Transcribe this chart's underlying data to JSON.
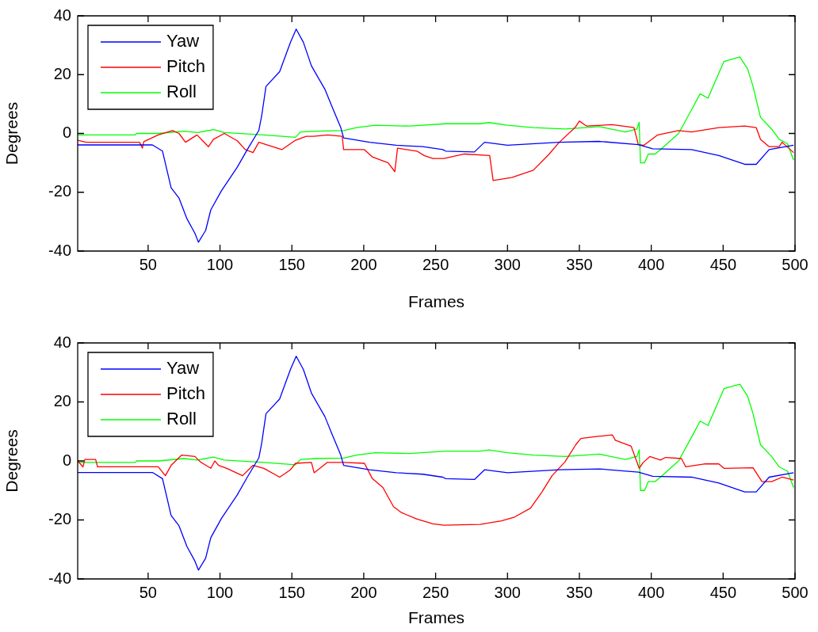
{
  "chart_data": [
    {
      "type": "line",
      "xlabel": "Frames",
      "ylabel": "Degrees",
      "xlim": [
        1,
        500
      ],
      "xticks": [
        50,
        100,
        150,
        200,
        250,
        300,
        350,
        400,
        450,
        500
      ],
      "ylim": [
        -40,
        40
      ],
      "yticks": [
        40,
        20,
        0,
        -20,
        -40
      ],
      "legend": "top left",
      "line_style": "solid",
      "series": [
        {
          "name": "Yaw",
          "color": "#0000ff",
          "x": [
            1,
            43,
            53,
            60,
            66,
            71.5,
            77,
            82.6,
            85,
            90,
            93.6,
            101,
            112,
            119,
            127,
            129,
            132,
            141.5,
            149,
            153,
            158,
            163.6,
            173,
            178,
            184,
            186,
            204,
            222.6,
            241,
            255,
            257,
            277,
            284,
            300,
            336,
            364,
            391,
            401,
            428,
            447,
            465,
            473,
            482,
            499
          ],
          "values": [
            -3.9,
            -3.9,
            -3.9,
            -6,
            -18.5,
            -22,
            -29,
            -34,
            -37,
            -33,
            -26,
            -19.5,
            -11.5,
            -5.5,
            1,
            6,
            16,
            21,
            31,
            35.5,
            31,
            23,
            15,
            9,
            2,
            -1.5,
            -3,
            -4,
            -4.5,
            -5.5,
            -6,
            -6.3,
            -3,
            -4,
            -3,
            -2.7,
            -3.8,
            -5.2,
            -5.5,
            -7.5,
            -10.5,
            -10.5,
            -5.5,
            -4
          ]
        },
        {
          "name": "Pitch",
          "color": "#ff0000",
          "x": [
            1,
            7,
            44,
            46,
            47,
            57,
            67,
            71.5,
            76,
            84,
            92,
            95.5,
            103,
            112,
            117.6,
            123,
            127,
            143,
            152.5,
            160,
            165,
            175,
            185,
            186,
            200.5,
            206,
            217,
            221.6,
            223.5,
            237,
            242,
            248,
            255.7,
            270,
            287.6,
            290,
            303,
            318,
            329,
            336,
            347,
            350,
            355,
            373,
            388,
            391,
            395,
            404.5,
            419,
            428,
            447,
            465,
            473,
            476,
            482,
            489,
            491,
            499
          ],
          "values": [
            -2.3,
            -3,
            -3,
            -5,
            -2.8,
            -0.5,
            1,
            0,
            -3,
            -0.5,
            -4.5,
            -2,
            0,
            -2.5,
            -5.5,
            -6.5,
            -3,
            -5.5,
            -2.3,
            -1,
            -1,
            -0.5,
            -1,
            -5.5,
            -5.5,
            -8,
            -10,
            -13,
            -5,
            -6,
            -7.5,
            -8.5,
            -8.5,
            -7,
            -7.5,
            -16,
            -15,
            -12.5,
            -7,
            -3,
            2,
            4.2,
            2.5,
            3,
            2,
            -3.8,
            -4,
            -0.5,
            1,
            0.5,
            2,
            2.5,
            2,
            -2,
            -4.5,
            -4.5,
            -3,
            -6.5
          ]
        },
        {
          "name": "Roll",
          "color": "#00ff00",
          "x": [
            1,
            41,
            42,
            57,
            75,
            84.4,
            95.5,
            103,
            130.5,
            152.5,
            156,
            167,
            186,
            195,
            208,
            232,
            257,
            281,
            287,
            300,
            318,
            340,
            364,
            382,
            390,
            391.6,
            392.5,
            395.3,
            398,
            402.7,
            406.4,
            419,
            428.5,
            434,
            439.5,
            443,
            450.6,
            461.6,
            467,
            470.8,
            476,
            483.7,
            489,
            494.8,
            499
          ],
          "values": [
            -0.5,
            -0.5,
            0,
            0,
            0.8,
            0.3,
            1.3,
            0.3,
            -0.5,
            -1.3,
            0.5,
            0.8,
            1,
            2,
            2.8,
            2.5,
            3.3,
            3.3,
            3.7,
            2.8,
            2,
            1.5,
            2.3,
            0.5,
            1.5,
            3.8,
            -10,
            -10,
            -7,
            -7,
            -5.5,
            0,
            8.5,
            13.5,
            12,
            16,
            24.5,
            26,
            22,
            16,
            5.5,
            1.5,
            -2,
            -3.5,
            -9
          ]
        }
      ]
    },
    {
      "type": "line",
      "xlabel": "Frames",
      "ylabel": "Degrees",
      "xlim": [
        1,
        500
      ],
      "xticks": [
        50,
        100,
        150,
        200,
        250,
        300,
        350,
        400,
        450,
        500
      ],
      "ylim": [
        -40,
        40
      ],
      "yticks": [
        40,
        20,
        0,
        -20,
        -40
      ],
      "legend": "top left",
      "line_style": "solid",
      "series": [
        {
          "name": "Yaw",
          "color": "#0000ff",
          "x": [
            1,
            43,
            53,
            60,
            66,
            71.5,
            77,
            82.6,
            85,
            90,
            93.6,
            101,
            112,
            119,
            127,
            129,
            132,
            141.5,
            149,
            153,
            158,
            163.6,
            173,
            178,
            184,
            186,
            204,
            222.6,
            241,
            255,
            257,
            277,
            284,
            300,
            336,
            364,
            391,
            401,
            428,
            447,
            465,
            473,
            482,
            499
          ],
          "values": [
            -3.9,
            -3.9,
            -3.9,
            -6,
            -18.5,
            -22,
            -29,
            -34,
            -37,
            -33,
            -26,
            -19.5,
            -11.5,
            -5.5,
            1,
            6,
            16,
            21,
            31,
            35.5,
            31,
            23,
            15,
            9,
            2,
            -1.5,
            -3,
            -4,
            -4.5,
            -5.5,
            -6,
            -6.3,
            -3,
            -4,
            -3,
            -2.7,
            -3.8,
            -5.2,
            -5.5,
            -7.5,
            -10.5,
            -10.5,
            -5.5,
            -4
          ]
        },
        {
          "name": "Pitch",
          "color": "#ff0000",
          "x": [
            1,
            4.7,
            6,
            13.5,
            14.8,
            41,
            57,
            62,
            66,
            73.4,
            82.6,
            86.3,
            93.6,
            96.4,
            99,
            104.7,
            115.7,
            123,
            130.5,
            141.5,
            149,
            152.5,
            163.6,
            165.5,
            174.7,
            186,
            200.5,
            206,
            213.3,
            220.7,
            226.2,
            237,
            248,
            255.7,
            281,
            295.9,
            305,
            316,
            324,
            331,
            340,
            347.5,
            351,
            362,
            373,
            375,
            386,
            391.6,
            394.4,
            399,
            406.4,
            410,
            421,
            424,
            437.7,
            447,
            450.6,
            470.8,
            477,
            483.7,
            491,
            499
          ],
          "values": [
            0,
            -2,
            0.5,
            0.5,
            -2,
            -2,
            -2,
            -5,
            -1.5,
            2,
            1.5,
            -0.3,
            -2.5,
            0,
            -1.5,
            -2.5,
            -5,
            -1.5,
            -2.5,
            -5.5,
            -3,
            -0.8,
            -0.5,
            -4,
            -0.5,
            -0.5,
            -0.8,
            -6,
            -9,
            -15.5,
            -17.5,
            -19.7,
            -21.3,
            -21.8,
            -21.5,
            -20.3,
            -19,
            -16,
            -10.5,
            -5,
            -0.3,
            5.5,
            7.6,
            8.3,
            8.8,
            7,
            5,
            -2.5,
            -0.5,
            1.5,
            0.3,
            1.2,
            0.8,
            -2,
            -1,
            -1,
            -2.5,
            -2.3,
            -7,
            -7,
            -5.5,
            -6.5
          ]
        },
        {
          "name": "Roll",
          "color": "#00ff00",
          "x": [
            1,
            41,
            42,
            57,
            75,
            84.4,
            95.5,
            103,
            130.5,
            152.5,
            156,
            167,
            186,
            195,
            208,
            232,
            257,
            281,
            287,
            300,
            318,
            340,
            364,
            382,
            390,
            391.6,
            392.5,
            395.3,
            398,
            402.7,
            406.4,
            419,
            428.5,
            434,
            439.5,
            443,
            450.6,
            461.6,
            467,
            470.8,
            476,
            483.7,
            489,
            494.8,
            499
          ],
          "values": [
            -0.5,
            -0.5,
            0,
            0,
            0.8,
            0.3,
            1.3,
            0.3,
            -0.5,
            -1.3,
            0.5,
            0.8,
            1,
            2,
            2.8,
            2.5,
            3.3,
            3.3,
            3.7,
            2.8,
            2,
            1.5,
            2.3,
            0.5,
            1.5,
            3.8,
            -10,
            -10,
            -7,
            -7,
            -5.5,
            0,
            8.5,
            13.5,
            12,
            16,
            24.5,
            26,
            22,
            16,
            5.5,
            1.5,
            -2,
            -3.5,
            -9
          ]
        }
      ]
    }
  ]
}
